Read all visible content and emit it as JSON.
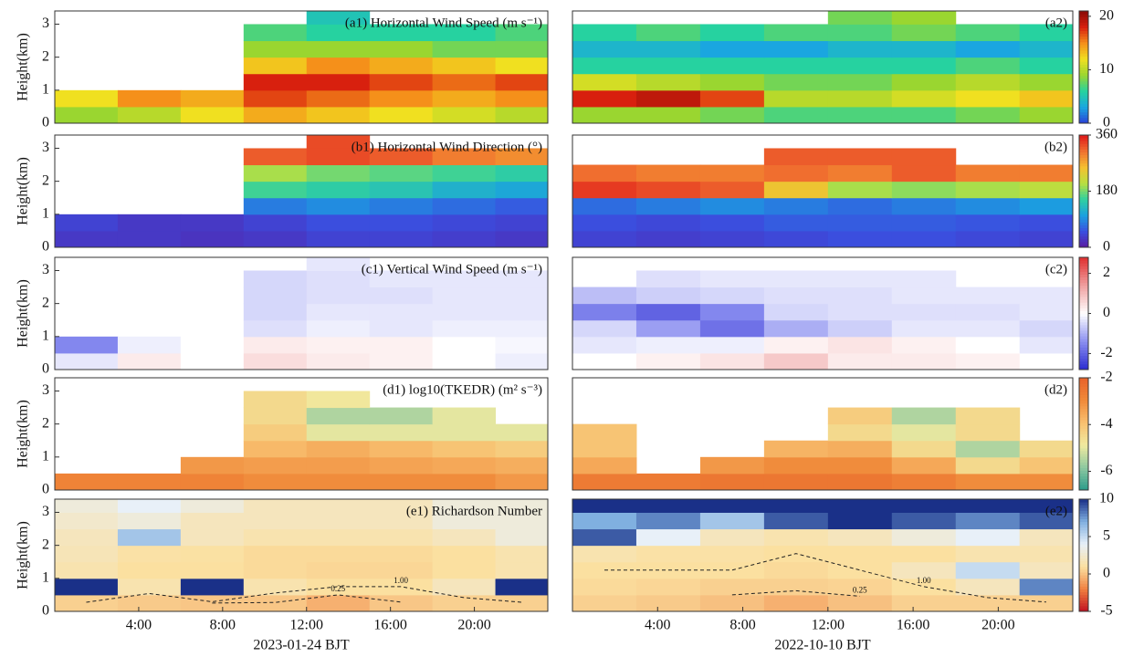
{
  "chart_data": [
    {
      "type": "heatmap",
      "title": "(a1) Horizontal Wind Speed (m s⁻¹)",
      "ylabel": "Height(km)",
      "ylim": [
        0,
        3.4
      ],
      "yticks": [
        0,
        1,
        2,
        3
      ],
      "xlim": [
        0,
        23.5
      ],
      "xbins": [
        0,
        3,
        6,
        9,
        12,
        15,
        18,
        21,
        23.5
      ],
      "ybins": [
        0,
        0.5,
        1,
        1.5,
        2,
        2.5,
        3,
        3.4
      ],
      "zlim": [
        0,
        21
      ],
      "colormap": [
        "#2b3fd6",
        "#1aa6e0",
        "#26d2a0",
        "#9ad630",
        "#f0e020",
        "#f5901a",
        "#d8200e",
        "#8a0a06"
      ],
      "values": [
        [
          9,
          10,
          12,
          14,
          13,
          12,
          11,
          10
        ],
        [
          12,
          15,
          14,
          17,
          16,
          15,
          14,
          15
        ],
        [
          null,
          null,
          null,
          18,
          18,
          17,
          16,
          17
        ],
        [
          null,
          null,
          null,
          13,
          15,
          14,
          13,
          12
        ],
        [
          null,
          null,
          null,
          9,
          9,
          9,
          8,
          8
        ],
        [
          null,
          null,
          null,
          7,
          6,
          6,
          6,
          7
        ],
        [
          null,
          null,
          null,
          null,
          5,
          null,
          null,
          null
        ]
      ]
    },
    {
      "type": "heatmap",
      "title": "(a2)",
      "ylim": [
        0,
        3.4
      ],
      "xlim": [
        0,
        23.5
      ],
      "colorbar": true,
      "zticks": [
        0,
        10,
        20
      ],
      "xbins": [
        0,
        3,
        6,
        9,
        12,
        15,
        18,
        21,
        23.5
      ],
      "ybins": [
        0,
        0.5,
        1,
        1.5,
        2,
        2.5,
        3,
        3.4
      ],
      "zlim": [
        0,
        21
      ],
      "colormap": [
        "#2b3fd6",
        "#1aa6e0",
        "#26d2a0",
        "#9ad630",
        "#f0e020",
        "#f5901a",
        "#d8200e",
        "#8a0a06"
      ],
      "values": [
        [
          9,
          9,
          8,
          7,
          7,
          7,
          8,
          9
        ],
        [
          18,
          19,
          17,
          10,
          10,
          11,
          12,
          13
        ],
        [
          11,
          10,
          9,
          8,
          8,
          9,
          10,
          9
        ],
        [
          6,
          6,
          6,
          6,
          6,
          6,
          7,
          6
        ],
        [
          4,
          4,
          3,
          3,
          4,
          4,
          3,
          4
        ],
        [
          6,
          7,
          6,
          7,
          7,
          8,
          7,
          6
        ],
        [
          null,
          null,
          null,
          null,
          8,
          9,
          null,
          null
        ]
      ]
    },
    {
      "type": "heatmap",
      "title": "(b1) Horizontal Wind Direction (°)",
      "ylabel": "Height(km)",
      "ylim": [
        0,
        3.4
      ],
      "yticks": [
        0,
        1,
        2,
        3
      ],
      "xlim": [
        0,
        23.5
      ],
      "xbins": [
        0,
        3,
        6,
        9,
        12,
        15,
        18,
        21,
        23.5
      ],
      "ybins": [
        0,
        0.5,
        1,
        1.5,
        2,
        2.5,
        3,
        3.4
      ],
      "zlim": [
        0,
        360
      ],
      "colormap": [
        "#5a1aa0",
        "#3a4fe0",
        "#1aa0e0",
        "#30d0a0",
        "#b8e040",
        "#f5c030",
        "#f07030",
        "#e01818"
      ],
      "values": [
        [
          30,
          30,
          25,
          30,
          40,
          40,
          35,
          30
        ],
        [
          40,
          30,
          30,
          40,
          50,
          50,
          45,
          40
        ],
        [
          null,
          null,
          null,
          80,
          90,
          80,
          70,
          60
        ],
        [
          null,
          null,
          null,
          160,
          150,
          140,
          120,
          110
        ],
        [
          null,
          null,
          null,
          200,
          180,
          170,
          160,
          150
        ],
        [
          null,
          null,
          null,
          320,
          330,
          320,
          300,
          290
        ],
        [
          null,
          null,
          null,
          null,
          330,
          null,
          null,
          null
        ]
      ]
    },
    {
      "type": "heatmap",
      "title": "(b2)",
      "ylim": [
        0,
        3.4
      ],
      "xlim": [
        0,
        23.5
      ],
      "colorbar": true,
      "zticks": [
        0,
        180,
        360
      ],
      "xbins": [
        0,
        3,
        6,
        9,
        12,
        15,
        18,
        21,
        23.5
      ],
      "ybins": [
        0,
        0.5,
        1,
        1.5,
        2,
        2.5,
        3,
        3.4
      ],
      "zlim": [
        0,
        360
      ],
      "colormap": [
        "#5a1aa0",
        "#3a4fe0",
        "#1aa0e0",
        "#30d0a0",
        "#b8e040",
        "#f5c030",
        "#f07030",
        "#e01818"
      ],
      "values": [
        [
          40,
          35,
          40,
          45,
          50,
          50,
          45,
          40
        ],
        [
          50,
          45,
          50,
          60,
          60,
          60,
          55,
          50
        ],
        [
          70,
          80,
          90,
          80,
          70,
          80,
          90,
          100
        ],
        [
          340,
          330,
          320,
          250,
          200,
          190,
          200,
          210
        ],
        [
          310,
          300,
          300,
          310,
          300,
          320,
          300,
          300
        ],
        [
          null,
          null,
          null,
          320,
          320,
          320,
          null,
          null
        ],
        [
          null,
          null,
          null,
          null,
          null,
          null,
          null,
          null
        ]
      ]
    },
    {
      "type": "heatmap",
      "title": "(c1) Vertical Wind Speed (m s⁻¹)",
      "ylabel": "Height(km)",
      "ylim": [
        0,
        3.4
      ],
      "yticks": [
        0,
        1,
        2,
        3
      ],
      "xlim": [
        0,
        23.5
      ],
      "xbins": [
        0,
        3,
        6,
        9,
        12,
        15,
        18,
        21,
        23.5
      ],
      "ybins": [
        0,
        0.5,
        1,
        1.5,
        2,
        2.5,
        3,
        3.4
      ],
      "zlim": [
        -2.8,
        2.8
      ],
      "colormap": [
        "#2a2ad0",
        "#8a8ef0",
        "#ffffff",
        "#f0a0a0",
        "#e03030"
      ],
      "values": [
        [
          -0.3,
          0.3,
          0,
          0.5,
          0.3,
          0.2,
          0,
          -0.2
        ],
        [
          -1.5,
          -0.2,
          0,
          0.3,
          0.2,
          0.2,
          0,
          -0.1
        ],
        [
          null,
          null,
          null,
          -0.4,
          -0.2,
          -0.3,
          -0.2,
          -0.2
        ],
        [
          null,
          null,
          null,
          -0.5,
          -0.3,
          -0.3,
          -0.3,
          -0.3
        ],
        [
          null,
          null,
          null,
          -0.5,
          -0.4,
          -0.4,
          -0.3,
          -0.3
        ],
        [
          null,
          null,
          null,
          -0.5,
          -0.4,
          -0.3,
          -0.3,
          -0.3
        ],
        [
          null,
          null,
          null,
          null,
          -0.3,
          null,
          null,
          null
        ]
      ]
    },
    {
      "type": "heatmap",
      "title": "(c2)",
      "ylim": [
        0,
        3.4
      ],
      "xlim": [
        0,
        23.5
      ],
      "colorbar": true,
      "zticks": [
        -2,
        0,
        2
      ],
      "xbins": [
        0,
        3,
        6,
        9,
        12,
        15,
        18,
        21,
        23.5
      ],
      "ybins": [
        0,
        0.5,
        1,
        1.5,
        2,
        2.5,
        3,
        3.4
      ],
      "zlim": [
        -2.8,
        2.8
      ],
      "colormap": [
        "#2a2ad0",
        "#8a8ef0",
        "#ffffff",
        "#f0a0a0",
        "#e03030"
      ],
      "values": [
        [
          0,
          0.2,
          0.4,
          0.8,
          0.3,
          0.3,
          0.2,
          0
        ],
        [
          -0.3,
          -0.2,
          -0.2,
          0.2,
          0.4,
          0.2,
          0,
          -0.3
        ],
        [
          -0.5,
          -1.2,
          -1.8,
          -1,
          -0.6,
          -0.3,
          -0.3,
          -0.5
        ],
        [
          -1.6,
          -2,
          -1.5,
          -0.5,
          -0.4,
          -0.4,
          -0.4,
          -0.3
        ],
        [
          -0.8,
          -0.6,
          -0.5,
          -0.4,
          -0.4,
          -0.3,
          -0.3,
          -0.3
        ],
        [
          null,
          -0.4,
          -0.3,
          -0.3,
          -0.3,
          -0.3,
          null,
          null
        ],
        [
          null,
          null,
          null,
          null,
          null,
          null,
          null,
          null
        ]
      ]
    },
    {
      "type": "heatmap",
      "title": "(d1) log10(TKEDR) (m² s⁻³)",
      "ylabel": "Height(km)",
      "ylim": [
        0,
        3.4
      ],
      "yticks": [
        0,
        1,
        2,
        3
      ],
      "xlim": [
        0,
        23.5
      ],
      "xbins": [
        0,
        3,
        6,
        9,
        12,
        15,
        18,
        21,
        23.5
      ],
      "ybins": [
        0,
        0.5,
        1,
        1.5,
        2,
        2.5,
        3,
        3.4
      ],
      "zlim": [
        -6.8,
        -2
      ],
      "colormap": [
        "#2a9a8a",
        "#8cc8a0",
        "#f0eaa0",
        "#f8c070",
        "#f08a3a",
        "#e8622a"
      ],
      "values": [
        [
          -2.8,
          -2.8,
          -2.8,
          -3,
          -3,
          -3,
          -3,
          -3.2
        ],
        [
          null,
          null,
          -3.2,
          -3.3,
          -3.3,
          -3.4,
          -3.5,
          -3.6
        ],
        [
          null,
          null,
          null,
          -3.8,
          -3.6,
          -3.8,
          -4,
          -4.2
        ],
        [
          null,
          null,
          null,
          -4.2,
          -5,
          -5,
          -5,
          -5
        ],
        [
          null,
          null,
          null,
          -4.5,
          -5.5,
          -5.5,
          -5,
          null
        ],
        [
          null,
          null,
          null,
          -4.5,
          -4.8,
          null,
          null,
          null
        ],
        [
          null,
          null,
          null,
          null,
          null,
          null,
          null,
          null
        ]
      ]
    },
    {
      "type": "heatmap",
      "title": "(d2)",
      "ylim": [
        0,
        3.4
      ],
      "xlim": [
        0,
        23.5
      ],
      "colorbar": true,
      "zticks": [
        -6,
        -4,
        -2
      ],
      "xbins": [
        0,
        3,
        6,
        9,
        12,
        15,
        18,
        21,
        23.5
      ],
      "ybins": [
        0,
        0.5,
        1,
        1.5,
        2,
        2.5,
        3,
        3.4
      ],
      "zlim": [
        -6.8,
        -2
      ],
      "colormap": [
        "#2a9a8a",
        "#8cc8a0",
        "#f0eaa0",
        "#f8c070",
        "#f08a3a",
        "#e8622a"
      ],
      "values": [
        [
          -2.6,
          -2.6,
          -2.5,
          -2.5,
          -2.5,
          -2.7,
          -3,
          -3
        ],
        [
          -3.5,
          null,
          -3.2,
          -3,
          -3,
          -3.5,
          -4.5,
          -4
        ],
        [
          -4,
          null,
          null,
          -3.7,
          -3.6,
          -4.5,
          -5.5,
          -4.5
        ],
        [
          -4,
          null,
          null,
          null,
          -4.5,
          -5,
          -4.5,
          null
        ],
        [
          null,
          null,
          null,
          null,
          -4.2,
          -5.5,
          -4.5,
          null
        ],
        [
          null,
          null,
          null,
          null,
          null,
          null,
          null,
          null
        ],
        [
          null,
          null,
          null,
          null,
          null,
          null,
          null,
          null
        ]
      ]
    },
    {
      "type": "heatmap",
      "title": "(e1) Richardson Number",
      "ylabel": "Height(km)",
      "xlabel": "2023-01-24 BJT",
      "ylim": [
        0,
        3.4
      ],
      "yticks": [
        0,
        1,
        2,
        3
      ],
      "xlim": [
        0,
        23.5
      ],
      "xticks": [
        {
          "value": 4,
          "label": "4:00"
        },
        {
          "value": 8,
          "label": "8:00"
        },
        {
          "value": 12,
          "label": "12:00"
        },
        {
          "value": 16,
          "label": "16:00"
        },
        {
          "value": 20,
          "label": "20:00"
        }
      ],
      "xbins": [
        0,
        3,
        6,
        9,
        12,
        15,
        18,
        21,
        23.5
      ],
      "ybins": [
        0,
        0.5,
        1,
        1.5,
        2,
        2.5,
        3,
        3.4
      ],
      "zlim": [
        -5,
        10
      ],
      "colormap": [
        "#c01020",
        "#f08040",
        "#fbe0a0",
        "#e8f0f8",
        "#80b0e0",
        "#1a3088"
      ],
      "contours": [
        {
          "value": 1,
          "label": "1.00"
        },
        {
          "value": 0.25,
          "label": "0.25"
        }
      ],
      "values": [
        [
          0.5,
          0.3,
          0.2,
          0.2,
          -0.5,
          0.2,
          0.5,
          0.5
        ],
        [
          10,
          1.5,
          10,
          1.5,
          1,
          1,
          2,
          10
        ],
        [
          1.5,
          1,
          1,
          0.8,
          0.7,
          0.7,
          1,
          1.5
        ],
        [
          1.8,
          1.2,
          1.1,
          0.8,
          0.8,
          0.8,
          1,
          1.5
        ],
        [
          2,
          6,
          2,
          1.5,
          1.5,
          1.5,
          2,
          3
        ],
        [
          2.5,
          3,
          2,
          2,
          2,
          2,
          3,
          3
        ],
        [
          3,
          4,
          3,
          2,
          2,
          2,
          3,
          3
        ]
      ]
    },
    {
      "type": "heatmap",
      "title": "(e2)",
      "xlabel": "2022-10-10 BJT",
      "ylim": [
        0,
        3.4
      ],
      "xlim": [
        0,
        23.5
      ],
      "colorbar": true,
      "zticks": [
        -5,
        0,
        5,
        10
      ],
      "xticks": [
        {
          "value": 4,
          "label": "4:00"
        },
        {
          "value": 8,
          "label": "8:00"
        },
        {
          "value": 12,
          "label": "12:00"
        },
        {
          "value": 16,
          "label": "16:00"
        },
        {
          "value": 20,
          "label": "20:00"
        }
      ],
      "xbins": [
        0,
        3,
        6,
        9,
        12,
        15,
        18,
        21,
        23.5
      ],
      "ybins": [
        0,
        0.5,
        1,
        1.5,
        2,
        2.5,
        3,
        3.4
      ],
      "zlim": [
        -5,
        10
      ],
      "colormap": [
        "#c01020",
        "#f08040",
        "#fbe0a0",
        "#e8f0f8",
        "#80b0e0",
        "#1a3088"
      ],
      "contours": [
        {
          "value": 1,
          "label": "1.00"
        },
        {
          "value": 0.25,
          "label": "0.25"
        }
      ],
      "values": [
        [
          0.5,
          0.3,
          0,
          -0.5,
          0,
          0.5,
          0.5,
          0.5
        ],
        [
          0.8,
          0.7,
          0.5,
          0.5,
          0.6,
          1,
          2,
          8
        ],
        [
          1,
          1,
          1,
          0.8,
          1,
          2,
          5,
          2
        ],
        [
          1.5,
          1.2,
          1.2,
          1,
          1,
          1,
          1.5,
          1.5
        ],
        [
          9,
          4,
          2,
          1.5,
          2,
          3,
          4,
          2
        ],
        [
          7,
          8,
          6,
          9,
          10,
          9,
          8,
          9
        ],
        [
          10,
          10,
          10,
          10,
          10,
          10,
          10,
          10
        ]
      ]
    }
  ]
}
